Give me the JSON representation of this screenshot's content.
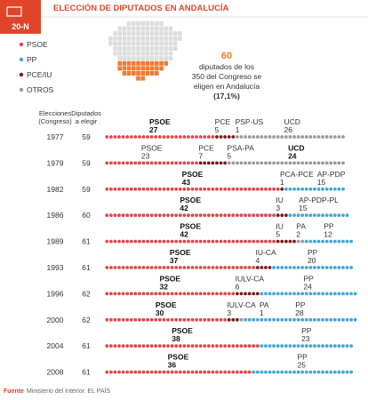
{
  "header": {
    "logo": "20-N",
    "title": "ELECCIÓN DE DIPUTADOS EN ANDALUCÍA"
  },
  "legend": [
    {
      "label": "PSOE",
      "color": "#e2474b"
    },
    {
      "label": "PP",
      "color": "#45a6d6"
    },
    {
      "label": "PCE/IU",
      "color": "#7b1b1f"
    },
    {
      "label": "OTROS",
      "color": "#9a9a9a"
    }
  ],
  "note": {
    "number": 60,
    "lines": [
      "diputados de los",
      "350 del Congreso se",
      "eligen en Andalucía",
      "(17,1%)"
    ]
  },
  "columns": {
    "election": [
      "Elecciones",
      "(Congreso)"
    ],
    "deputies": [
      "Diputados",
      "a elegir"
    ]
  },
  "rows": [
    {
      "year": 1977,
      "deputies": 59,
      "parties": [
        {
          "name": "PSOE",
          "seats": 27,
          "color": "#e2474b",
          "bold": true
        },
        {
          "name": "PCE",
          "seats": 5,
          "color": "#7b1b1f"
        },
        {
          "name": "PSP-US",
          "seats": 1,
          "color": "#9a9a9a"
        },
        {
          "name": "UCD",
          "seats": 26,
          "color": "#9a9a9a"
        }
      ]
    },
    {
      "year": 1979,
      "deputies": 59,
      "parties": [
        {
          "name": "PSOE",
          "seats": 23,
          "color": "#e2474b"
        },
        {
          "name": "PCE",
          "seats": 7,
          "color": "#7b1b1f"
        },
        {
          "name": "PSA-PA",
          "seats": 5,
          "color": "#9a9a9a"
        },
        {
          "name": "UCD",
          "seats": 24,
          "color": "#9a9a9a",
          "bold": true
        }
      ]
    },
    {
      "year": 1982,
      "deputies": 59,
      "parties": [
        {
          "name": "PSOE",
          "seats": 43,
          "color": "#e2474b",
          "bold": true
        },
        {
          "name": "PCA-PCE",
          "seats": 1,
          "color": "#7b1b1f"
        },
        {
          "name": "AP-PDP",
          "seats": 15,
          "color": "#45a6d6"
        }
      ]
    },
    {
      "year": 1986,
      "deputies": 60,
      "parties": [
        {
          "name": "PSOE",
          "seats": 42,
          "color": "#e2474b",
          "bold": true
        },
        {
          "name": "IU",
          "seats": 3,
          "color": "#7b1b1f"
        },
        {
          "name": "AP-PDP-PL",
          "seats": 15,
          "color": "#45a6d6"
        }
      ]
    },
    {
      "year": 1989,
      "deputies": 61,
      "parties": [
        {
          "name": "PSOE",
          "seats": 42,
          "color": "#e2474b",
          "bold": true
        },
        {
          "name": "IU",
          "seats": 5,
          "color": "#7b1b1f"
        },
        {
          "name": "PA",
          "seats": 2,
          "color": "#9a9a9a"
        },
        {
          "name": "PP",
          "seats": 12,
          "color": "#45a6d6"
        }
      ]
    },
    {
      "year": 1993,
      "deputies": 61,
      "parties": [
        {
          "name": "PSOE",
          "seats": 37,
          "color": "#e2474b",
          "bold": true
        },
        {
          "name": "IU-CA",
          "seats": 4,
          "color": "#7b1b1f"
        },
        {
          "name": "PP",
          "seats": 20,
          "color": "#45a6d6"
        }
      ]
    },
    {
      "year": 1996,
      "deputies": 62,
      "parties": [
        {
          "name": "PSOE",
          "seats": 32,
          "color": "#e2474b",
          "bold": true
        },
        {
          "name": "IULV-CA",
          "seats": 6,
          "color": "#7b1b1f"
        },
        {
          "name": "PP",
          "seats": 24,
          "color": "#45a6d6"
        }
      ]
    },
    {
      "year": 2000,
      "deputies": 62,
      "parties": [
        {
          "name": "PSOE",
          "seats": 30,
          "color": "#e2474b",
          "bold": true
        },
        {
          "name": "IULV-CA",
          "seats": 3,
          "color": "#7b1b1f"
        },
        {
          "name": "PA",
          "seats": 1,
          "color": "#9a9a9a"
        },
        {
          "name": "PP",
          "seats": 28,
          "color": "#45a6d6"
        }
      ]
    },
    {
      "year": 2004,
      "deputies": 61,
      "parties": [
        {
          "name": "PSOE",
          "seats": 38,
          "color": "#e2474b",
          "bold": true
        },
        {
          "name": "PP",
          "seats": 23,
          "color": "#45a6d6"
        }
      ]
    },
    {
      "year": 2008,
      "deputies": 61,
      "parties": [
        {
          "name": "PSOE",
          "seats": 36,
          "color": "#e2474b",
          "bold": true
        },
        {
          "name": "PP",
          "seats": 25,
          "color": "#45a6d6"
        }
      ]
    }
  ],
  "source": {
    "label": "Fuente",
    "text": "Ministerio del Interior. EL PAÍS"
  }
}
